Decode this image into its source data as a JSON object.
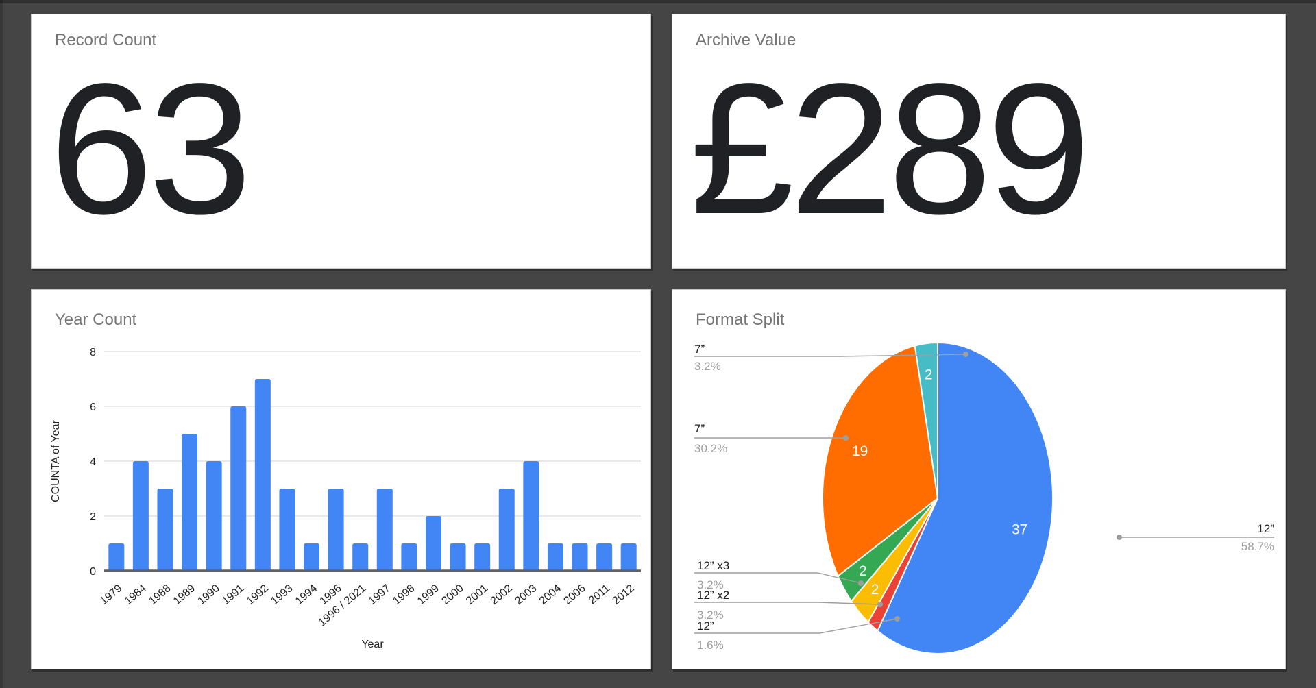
{
  "page": {
    "background": "#454545",
    "card_background": "#ffffff"
  },
  "scorecards": [
    {
      "title": "Record Count",
      "value": "63"
    },
    {
      "title": "Archive Value",
      "value": "£289"
    }
  ],
  "chart_data": [
    {
      "type": "bar",
      "title": "Year Count",
      "xlabel": "Year",
      "ylabel": "COUNTA of Year",
      "ylim": [
        0,
        8
      ],
      "yticks": [
        0,
        2,
        4,
        6,
        8
      ],
      "grid": true,
      "bar_color": "#4285F4",
      "categories": [
        "1979",
        "1984",
        "1988",
        "1989",
        "1990",
        "1991",
        "1992",
        "1993",
        "1994",
        "1996",
        "1996 / 2021",
        "1997",
        "1998",
        "1999",
        "2000",
        "2001",
        "2002",
        "2003",
        "2004",
        "2006",
        "2011",
        "2012"
      ],
      "values": [
        1,
        4,
        3,
        5,
        4,
        6,
        7,
        3,
        1,
        3,
        1,
        3,
        1,
        2,
        1,
        1,
        3,
        4,
        1,
        1,
        1,
        1
      ]
    },
    {
      "type": "pie",
      "title": "Format Split",
      "start_angle": "top",
      "direction": "clockwise",
      "legend_position": "callout-labels",
      "slices": [
        {
          "label": "12”",
          "value": 37,
          "pct": "58.7%",
          "color": "#4285F4"
        },
        {
          "label": "12”",
          "value": 1,
          "pct": "1.6%",
          "color": "#EA4335"
        },
        {
          "label": "12” x2",
          "value": 2,
          "pct": "3.2%",
          "color": "#FBBC04"
        },
        {
          "label": "12” x3",
          "value": 2,
          "pct": "3.2%",
          "color": "#34A853"
        },
        {
          "label": "7”",
          "value": 19,
          "pct": "30.2%",
          "color": "#FF6D01"
        },
        {
          "label": "7”",
          "value": 2,
          "pct": "3.2%",
          "color": "#46BDC6"
        }
      ]
    }
  ]
}
